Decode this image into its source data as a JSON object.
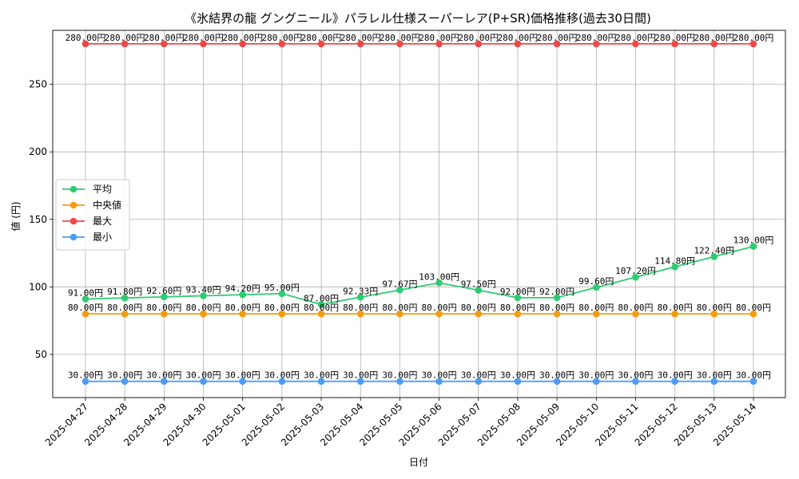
{
  "chart_data": {
    "type": "line",
    "title": "《氷結界の龍 グングニール》パラレル仕様スーパーレア(P+SR)価格推移(過去30日間)",
    "xlabel": "日付",
    "ylabel": "値 (円)",
    "ylim": [
      18,
      290
    ],
    "yticks": [
      50,
      100,
      150,
      200,
      250
    ],
    "grid": true,
    "legend_position": "center-left",
    "value_suffix": "円",
    "categories": [
      "2025-04-27",
      "2025-04-28",
      "2025-04-29",
      "2025-04-30",
      "2025-05-01",
      "2025-05-02",
      "2025-05-03",
      "2025-05-04",
      "2025-05-05",
      "2025-05-06",
      "2025-05-07",
      "2025-05-08",
      "2025-05-09",
      "2025-05-10",
      "2025-05-11",
      "2025-05-12",
      "2025-05-13",
      "2025-05-14"
    ],
    "series": [
      {
        "name": "平均",
        "color": "#2ecc71",
        "values": [
          91.0,
          91.8,
          92.6,
          93.4,
          94.2,
          95.0,
          87.0,
          92.33,
          97.67,
          103.0,
          97.5,
          92.0,
          92.0,
          99.6,
          107.2,
          114.8,
          122.4,
          130.0
        ]
      },
      {
        "name": "中央値",
        "color": "#f39c12",
        "values": [
          80,
          80,
          80,
          80,
          80,
          80,
          80,
          80,
          80,
          80,
          80,
          80,
          80,
          80,
          80,
          80,
          80,
          80
        ]
      },
      {
        "name": "最大",
        "color": "#f04747",
        "values": [
          280,
          280,
          280,
          280,
          280,
          280,
          280,
          280,
          280,
          280,
          280,
          280,
          280,
          280,
          280,
          280,
          280,
          280
        ]
      },
      {
        "name": "最小",
        "color": "#4d9cf4",
        "values": [
          30,
          30,
          30,
          30,
          30,
          30,
          30,
          30,
          30,
          30,
          30,
          30,
          30,
          30,
          30,
          30,
          30,
          30
        ]
      }
    ]
  }
}
